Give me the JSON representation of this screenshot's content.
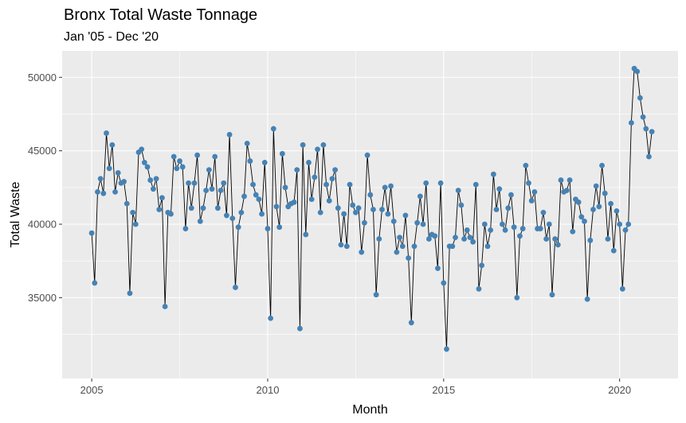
{
  "chart_data": {
    "type": "line",
    "title": "Bronx Total Waste Tonnage",
    "subtitle": "Jan '05 - Dec '20",
    "xlabel": "Month",
    "ylabel": "Total Waste",
    "xlim": [
      2004.16,
      2021.66
    ],
    "ylim": [
      29500,
      51800
    ],
    "x_ticks": [
      2005,
      2010,
      2015,
      2020
    ],
    "x_tick_labels": [
      "2005",
      "2010",
      "2015",
      "2020"
    ],
    "y_ticks": [
      35000,
      40000,
      45000,
      50000
    ],
    "y_tick_labels": [
      "35000",
      "40000",
      "45000",
      "50000"
    ],
    "grid": true,
    "legend": "none",
    "colors": {
      "panel": "#ebebeb",
      "grid": "#ffffff",
      "point": "#4682b4",
      "line": "#000000"
    },
    "x_start": 2005.0,
    "x_step": 0.08333,
    "series": [
      {
        "values": [
          39400,
          36000,
          42200,
          43100,
          42100,
          46200,
          43800,
          45400,
          42200,
          43500,
          42800,
          42900,
          41400,
          35300,
          40800,
          40000,
          44900,
          45100,
          44200,
          43900,
          43000,
          42400,
          43100,
          41000,
          41800,
          34400,
          40800,
          40700,
          44600,
          43800,
          44300,
          43900,
          39700,
          42800,
          41100,
          42800,
          44700,
          40200,
          41100,
          42300,
          43700,
          42400,
          44600,
          41100,
          42300,
          42800,
          40600,
          46100,
          40400,
          35700,
          39800,
          40800,
          41900,
          45500,
          44300,
          42700,
          42000,
          41700,
          40700,
          44200,
          39700,
          33600,
          46500,
          41200,
          39800,
          44800,
          42500,
          41200,
          41400,
          41500,
          43700,
          32900,
          45400,
          39300,
          44200,
          41700,
          43200,
          45100,
          40800,
          45400,
          42700,
          41600,
          43100,
          43700,
          41100,
          38600,
          40700,
          38500,
          42700,
          41300,
          40800,
          41100,
          38100,
          40100,
          44700,
          42000,
          41000,
          35200,
          39000,
          41000,
          42500,
          40700,
          42600,
          40200,
          38100,
          39100,
          38500,
          40600,
          37700,
          33300,
          38500,
          40100,
          41900,
          40000,
          42800,
          39000,
          39300,
          39200,
          37000,
          42800,
          36000,
          31500,
          38500,
          38500,
          39100,
          42300,
          41300,
          39000,
          39600,
          39100,
          38800,
          42700,
          35600,
          37200,
          40000,
          38500,
          39600,
          43400,
          41000,
          42400,
          40000,
          39600,
          41100,
          42000,
          39800,
          35000,
          39200,
          39700,
          44000,
          42800,
          41600,
          42200,
          39700,
          39700,
          40800,
          39000,
          40000,
          35200,
          39000,
          38600,
          43000,
          42200,
          42300,
          43000,
          39500,
          41700,
          41500,
          40500,
          40200,
          34900,
          38900,
          41000,
          42600,
          41200,
          44000,
          42100,
          39000,
          41400,
          38200,
          40900,
          40000,
          35600,
          39600,
          40000,
          46900,
          50600,
          50400,
          48600,
          47300,
          46500,
          44600,
          46300
        ]
      }
    ]
  }
}
